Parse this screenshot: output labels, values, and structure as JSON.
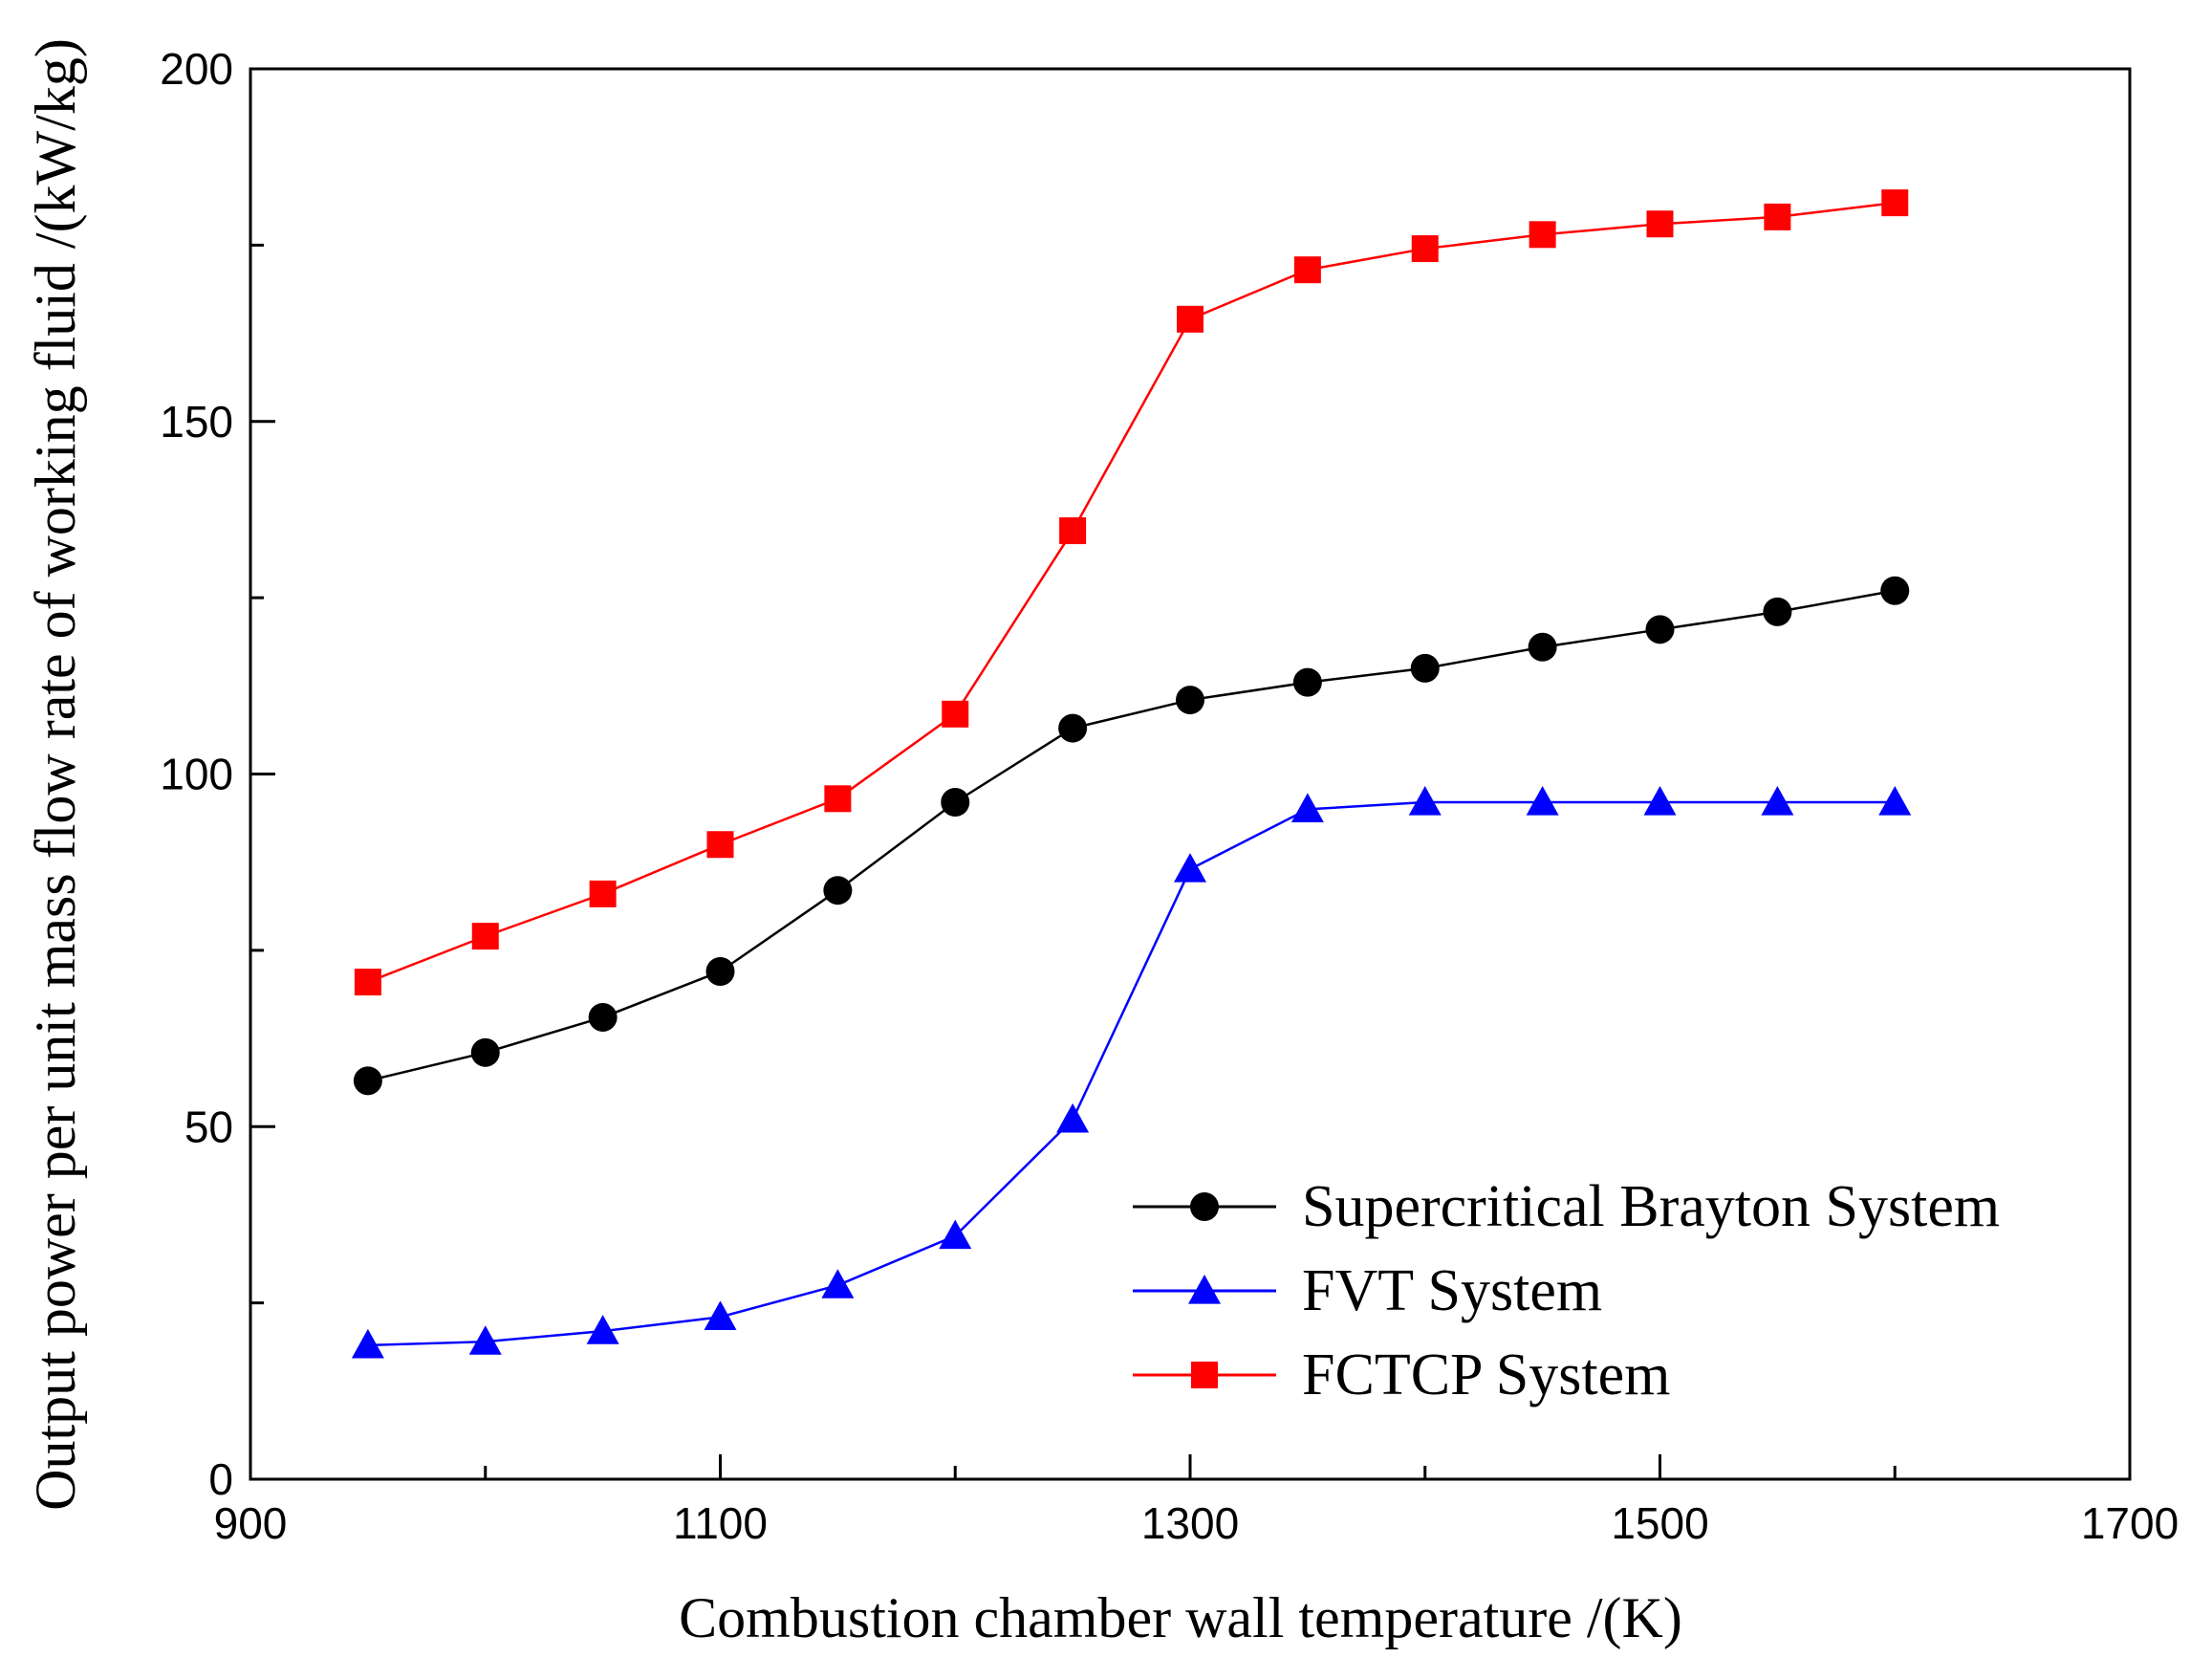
{
  "chart_data": {
    "type": "line",
    "title": "",
    "xlabel": "Combustion chamber wall temperature /(K)",
    "ylabel": "Output power per unit mass flow rate of working fluid /(kW/kg)",
    "xlim": [
      900,
      1700
    ],
    "ylim": [
      0,
      200
    ],
    "xticks": [
      "900",
      "1100",
      "1300",
      "1500",
      "1700"
    ],
    "yticks": [
      "0",
      "50",
      "100",
      "150",
      "200"
    ],
    "x": [
      950,
      1000,
      1050,
      1100,
      1150,
      1200,
      1250,
      1300,
      1350,
      1400,
      1450,
      1500,
      1550,
      1600
    ],
    "legend_position": "bottom-right",
    "grid": false,
    "series": [
      {
        "name": "Supercritical Brayton System",
        "color": "#000000",
        "marker": "circle",
        "values": [
          56.5,
          60.5,
          65.5,
          72,
          83.5,
          96,
          106.5,
          110.5,
          113,
          115,
          118,
          120.5,
          123,
          126
        ]
      },
      {
        "name": "FVT System",
        "color": "#0000ff",
        "marker": "triangle",
        "values": [
          19,
          19.5,
          21,
          23,
          27.5,
          34.5,
          51,
          86.5,
          95,
          96,
          96,
          96,
          96,
          96
        ]
      },
      {
        "name": "FCTCP System",
        "color": "#ff0000",
        "marker": "square",
        "values": [
          70.5,
          77,
          83,
          90,
          96.5,
          108.5,
          134.5,
          164.5,
          171.5,
          174.5,
          176.5,
          178,
          179,
          181
        ]
      }
    ]
  }
}
